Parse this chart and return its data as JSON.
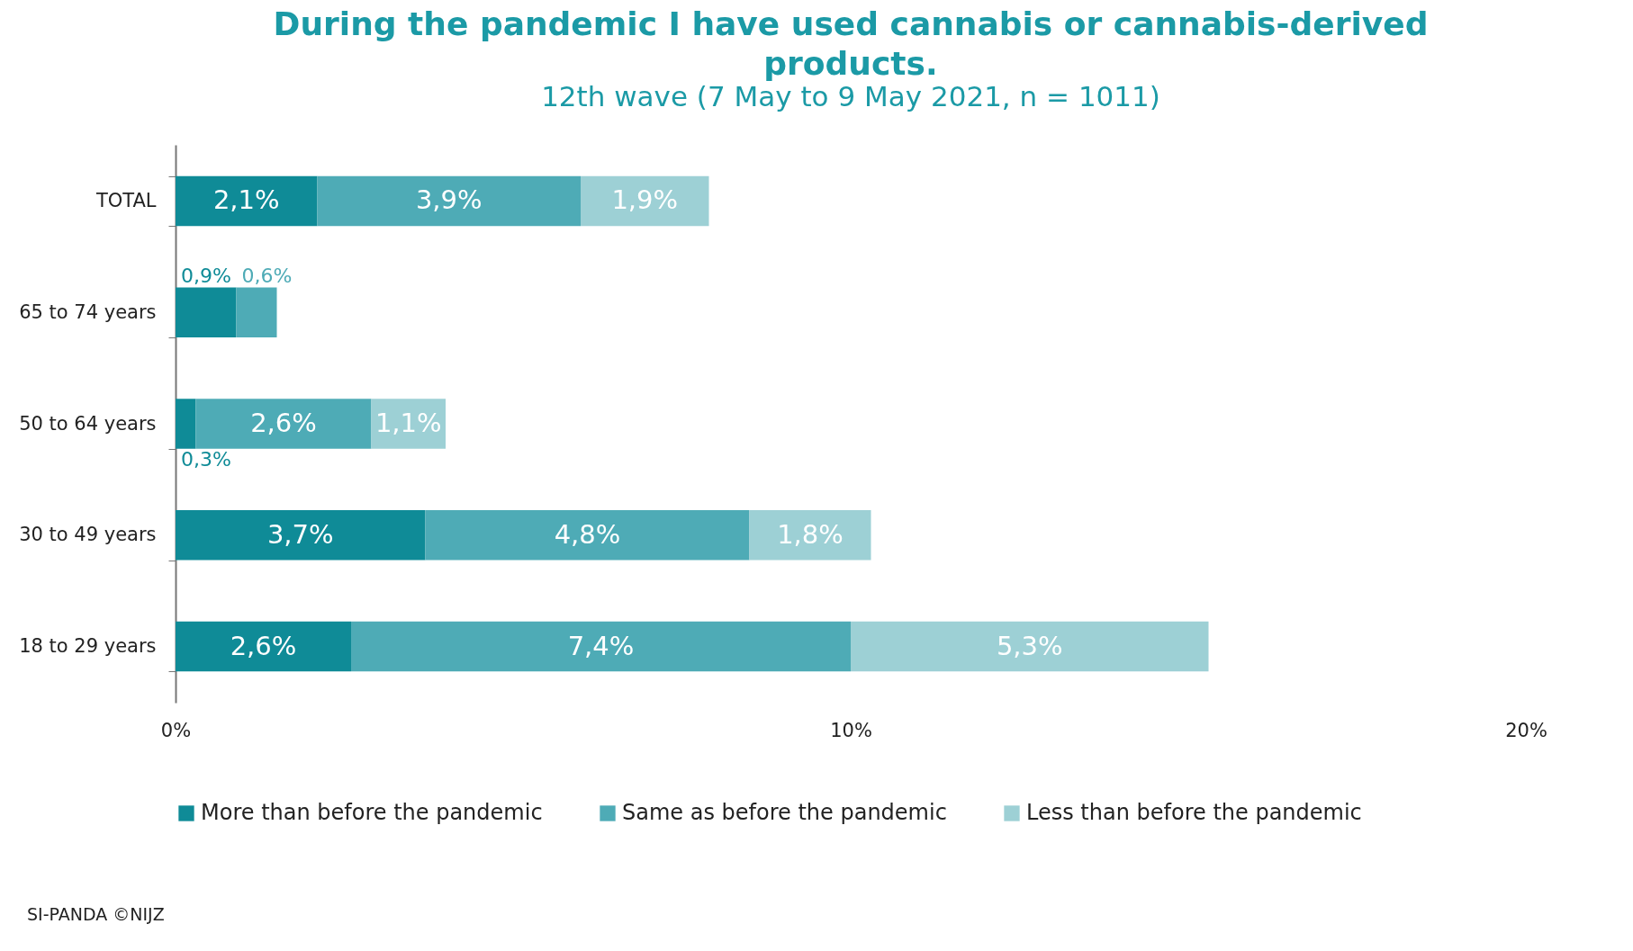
{
  "chart_data": {
    "type": "bar",
    "orientation": "horizontal",
    "stacked": true,
    "title": "During the pandemic I have used cannabis or cannabis-derived products.",
    "subtitle": "12th wave (7 May to 9 May 2021, n = 1011)",
    "categories": [
      "TOTAL",
      "65 to 74 years",
      "50 to 64 years",
      "30 to 49 years",
      "18 to 29 years"
    ],
    "series": [
      {
        "name": "More than before the pandemic",
        "color": "#0f8b97",
        "values": [
          2.1,
          0.9,
          0.3,
          3.7,
          2.6
        ],
        "value_labels": [
          "2,1%",
          "0,9%",
          "0,3%",
          "3,7%",
          "2,6%"
        ]
      },
      {
        "name": "Same as before the pandemic",
        "color": "#4eabb6",
        "values": [
          3.9,
          0.6,
          2.6,
          4.8,
          7.4
        ],
        "value_labels": [
          "3,9%",
          "0,6%",
          "2,6%",
          "4,8%",
          "7,4%"
        ]
      },
      {
        "name": "Less than before the pandemic",
        "color": "#9dd0d5",
        "values": [
          1.9,
          null,
          1.1,
          1.8,
          5.3
        ],
        "value_labels": [
          "1,9%",
          null,
          "1,1%",
          "1,8%",
          "5,3%"
        ]
      }
    ],
    "xlim": [
      0,
      20
    ],
    "xticks": [
      {
        "value": 0,
        "label": "0%"
      },
      {
        "value": 10,
        "label": "10%"
      },
      {
        "value": 20,
        "label": "20%"
      }
    ],
    "grid": false,
    "legend": "bottom",
    "annotations": [
      "SI-PANDA ©NIJZ"
    ]
  }
}
